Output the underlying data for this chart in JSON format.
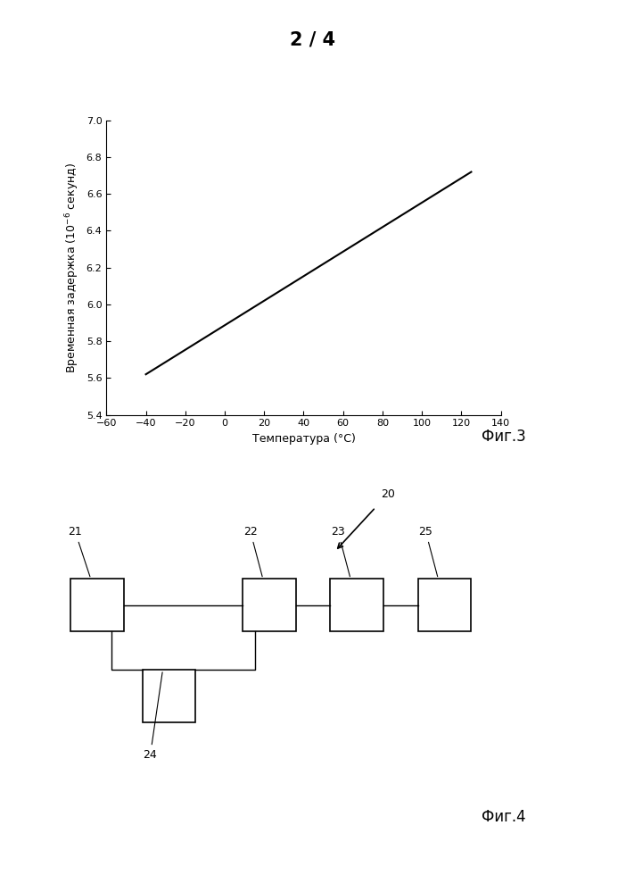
{
  "page_label": "2 / 4",
  "fig3_label": "Фиг.3",
  "fig4_label": "Фиг.4",
  "ylabel": "Временная задержка (10$^{-6}$ секунд)",
  "xlabel": "Температура (°C)",
  "xlim": [
    -60,
    140
  ],
  "ylim": [
    5.4,
    7.0
  ],
  "xticks": [
    -60,
    -40,
    -20,
    0,
    20,
    40,
    60,
    80,
    100,
    120,
    140
  ],
  "yticks": [
    5.4,
    5.6,
    5.8,
    6.0,
    6.2,
    6.4,
    6.6,
    6.8,
    7.0
  ],
  "line_x": [
    -40,
    125
  ],
  "line_y": [
    5.62,
    6.72
  ],
  "line_color": "#000000",
  "bg_color": "#ffffff",
  "system_label": "20",
  "box_keys": [
    "21",
    "22",
    "23",
    "24",
    "25"
  ]
}
